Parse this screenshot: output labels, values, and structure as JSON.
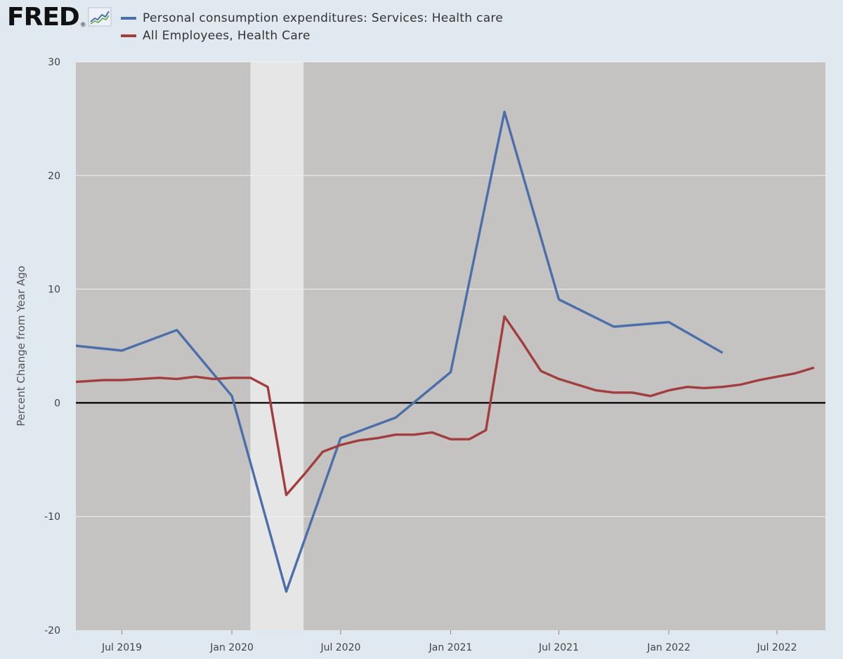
{
  "branding": {
    "logo_text": "FRED",
    "logo_mark": "®"
  },
  "colors": {
    "page_bg": "#e1e9f0",
    "plot_bg": "#c5c2c2",
    "recession": "#e6e6e6",
    "grid": "#f2f2f2",
    "zero_line": "#000000",
    "series_1": "#4a6fa9",
    "series_2": "#a23e3e"
  },
  "chart_data": {
    "type": "line",
    "title": "",
    "xlabel": "",
    "ylabel": "Percent Change from Year Ago",
    "ylim": [
      -20,
      30
    ],
    "xlim": [
      "2019-04-15",
      "2022-09-20"
    ],
    "yticks": [
      30,
      20,
      10,
      0,
      -10,
      -20
    ],
    "xticks": [
      {
        "date": "2019-07-01",
        "label": "Jul 2019"
      },
      {
        "date": "2020-01-01",
        "label": "Jan 2020"
      },
      {
        "date": "2020-07-01",
        "label": "Jul 2020"
      },
      {
        "date": "2021-01-01",
        "label": "Jan 2021"
      },
      {
        "date": "2021-07-01",
        "label": "Jul 2021"
      },
      {
        "date": "2022-01-01",
        "label": "Jan 2022"
      },
      {
        "date": "2022-07-01",
        "label": "Jul 2022"
      }
    ],
    "grid": true,
    "legend_position": "top",
    "recession": {
      "start": "2020-02-01",
      "end": "2020-04-30"
    },
    "series": [
      {
        "name": "Personal consumption expenditures: Services: Health care",
        "color": "#4a6fa9",
        "points": [
          {
            "x": "2019-04-01",
            "y": 5.1
          },
          {
            "x": "2019-07-01",
            "y": 4.6
          },
          {
            "x": "2019-10-01",
            "y": 6.4
          },
          {
            "x": "2020-01-01",
            "y": 0.6
          },
          {
            "x": "2020-04-01",
            "y": -16.6
          },
          {
            "x": "2020-07-01",
            "y": -3.1
          },
          {
            "x": "2020-10-01",
            "y": -1.3
          },
          {
            "x": "2021-01-01",
            "y": 2.7
          },
          {
            "x": "2021-04-01",
            "y": 25.6
          },
          {
            "x": "2021-07-01",
            "y": 9.1
          },
          {
            "x": "2021-10-01",
            "y": 6.7
          },
          {
            "x": "2022-01-01",
            "y": 7.1
          },
          {
            "x": "2022-04-01",
            "y": 4.4
          }
        ]
      },
      {
        "name": "All Employees, Health Care",
        "color": "#a23e3e",
        "points": [
          {
            "x": "2019-04-01",
            "y": 1.8
          },
          {
            "x": "2019-05-01",
            "y": 1.9
          },
          {
            "x": "2019-06-01",
            "y": 2.0
          },
          {
            "x": "2019-07-01",
            "y": 2.0
          },
          {
            "x": "2019-08-01",
            "y": 2.1
          },
          {
            "x": "2019-09-01",
            "y": 2.2
          },
          {
            "x": "2019-10-01",
            "y": 2.1
          },
          {
            "x": "2019-11-01",
            "y": 2.3
          },
          {
            "x": "2019-12-01",
            "y": 2.1
          },
          {
            "x": "2020-01-01",
            "y": 2.2
          },
          {
            "x": "2020-02-01",
            "y": 2.2
          },
          {
            "x": "2020-03-01",
            "y": 1.4
          },
          {
            "x": "2020-04-01",
            "y": -8.1
          },
          {
            "x": "2020-05-01",
            "y": -6.3
          },
          {
            "x": "2020-06-01",
            "y": -4.3
          },
          {
            "x": "2020-07-01",
            "y": -3.7
          },
          {
            "x": "2020-08-01",
            "y": -3.3
          },
          {
            "x": "2020-09-01",
            "y": -3.1
          },
          {
            "x": "2020-10-01",
            "y": -2.8
          },
          {
            "x": "2020-11-01",
            "y": -2.8
          },
          {
            "x": "2020-12-01",
            "y": -2.6
          },
          {
            "x": "2021-01-01",
            "y": -3.2
          },
          {
            "x": "2021-02-01",
            "y": -3.2
          },
          {
            "x": "2021-03-01",
            "y": -2.4
          },
          {
            "x": "2021-04-01",
            "y": 7.6
          },
          {
            "x": "2021-05-01",
            "y": 5.3
          },
          {
            "x": "2021-06-01",
            "y": 2.8
          },
          {
            "x": "2021-07-01",
            "y": 2.1
          },
          {
            "x": "2021-08-01",
            "y": 1.6
          },
          {
            "x": "2021-09-01",
            "y": 1.1
          },
          {
            "x": "2021-10-01",
            "y": 0.9
          },
          {
            "x": "2021-11-01",
            "y": 0.9
          },
          {
            "x": "2021-12-01",
            "y": 0.6
          },
          {
            "x": "2022-01-01",
            "y": 1.1
          },
          {
            "x": "2022-02-01",
            "y": 1.4
          },
          {
            "x": "2022-03-01",
            "y": 1.3
          },
          {
            "x": "2022-04-01",
            "y": 1.4
          },
          {
            "x": "2022-05-01",
            "y": 1.6
          },
          {
            "x": "2022-06-01",
            "y": 2.0
          },
          {
            "x": "2022-07-01",
            "y": 2.3
          },
          {
            "x": "2022-08-01",
            "y": 2.6
          },
          {
            "x": "2022-09-01",
            "y": 3.1
          }
        ]
      }
    ]
  }
}
